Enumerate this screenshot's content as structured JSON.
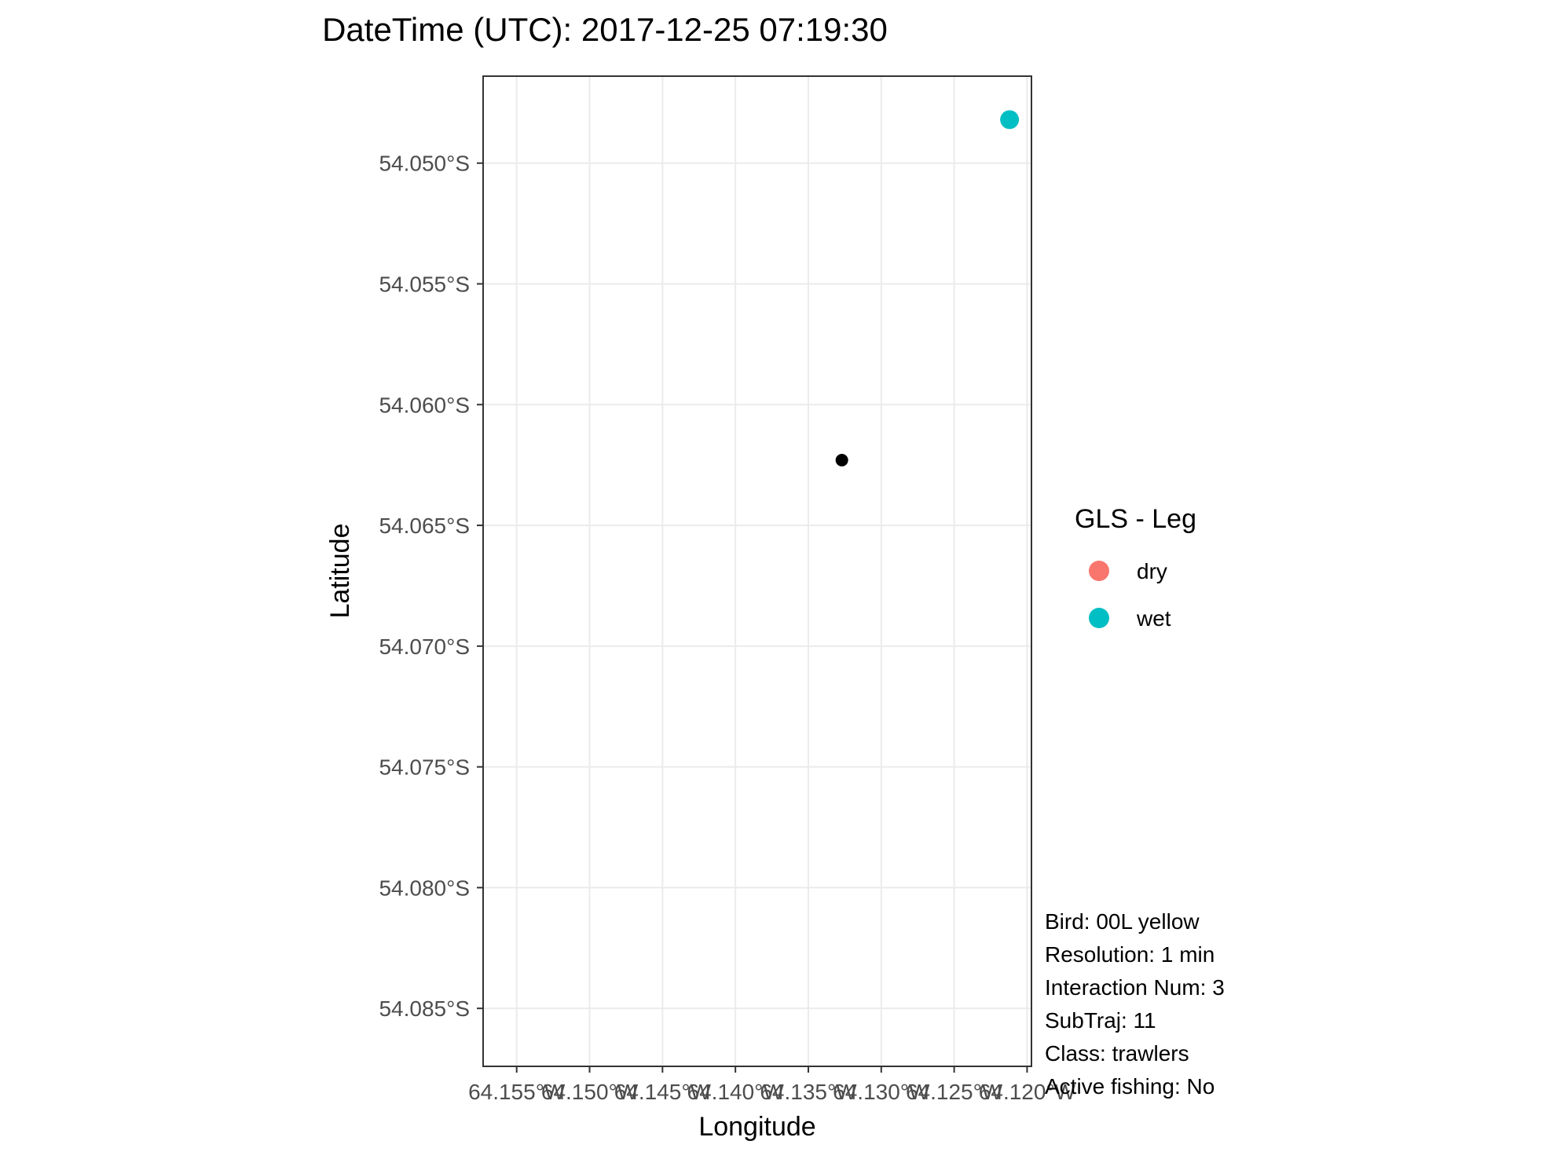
{
  "chart_data": {
    "type": "scatter",
    "title": "DateTime (UTC): 2017-12-25 07:19:30",
    "xlabel": "Longitude",
    "ylabel": "Latitude",
    "xlim": [
      -64.1573,
      -64.1197
    ],
    "ylim": [
      -54.0874,
      -54.0464
    ],
    "x_ticks": [
      -64.155,
      -64.15,
      -64.145,
      -64.14,
      -64.135,
      -64.13,
      -64.125,
      -64.12
    ],
    "x_tick_labels": [
      "64.155°W",
      "64.150°W",
      "64.145°W",
      "64.140°W",
      "64.135°W",
      "64.130°W",
      "64.125°W",
      "64.120°W"
    ],
    "y_ticks": [
      -54.05,
      -54.055,
      -54.06,
      -54.065,
      -54.07,
      -54.075,
      -54.08,
      -54.085
    ],
    "y_tick_labels": [
      "54.050°S",
      "54.055°S",
      "54.060°S",
      "54.065°S",
      "54.070°S",
      "54.075°S",
      "54.080°S",
      "54.085°S"
    ],
    "grid": true,
    "legend": {
      "title": "GLS - Leg",
      "position": "right",
      "entries": [
        {
          "label": "dry",
          "color": "#F8766D"
        },
        {
          "label": "wet",
          "color": "#00BFC4"
        }
      ]
    },
    "series": [
      {
        "name": "wet",
        "color": "#00BFC4",
        "points": [
          {
            "x": -64.1212,
            "y": -54.0482
          }
        ]
      }
    ],
    "marker": {
      "x": -64.1327,
      "y": -54.0623,
      "color": "#000000"
    },
    "annotations": [
      "Bird: 00L yellow",
      "Resolution: 1 min",
      "Interaction Num: 3",
      "SubTraj: 11",
      "Class: trawlers",
      "Active fishing: No"
    ]
  }
}
